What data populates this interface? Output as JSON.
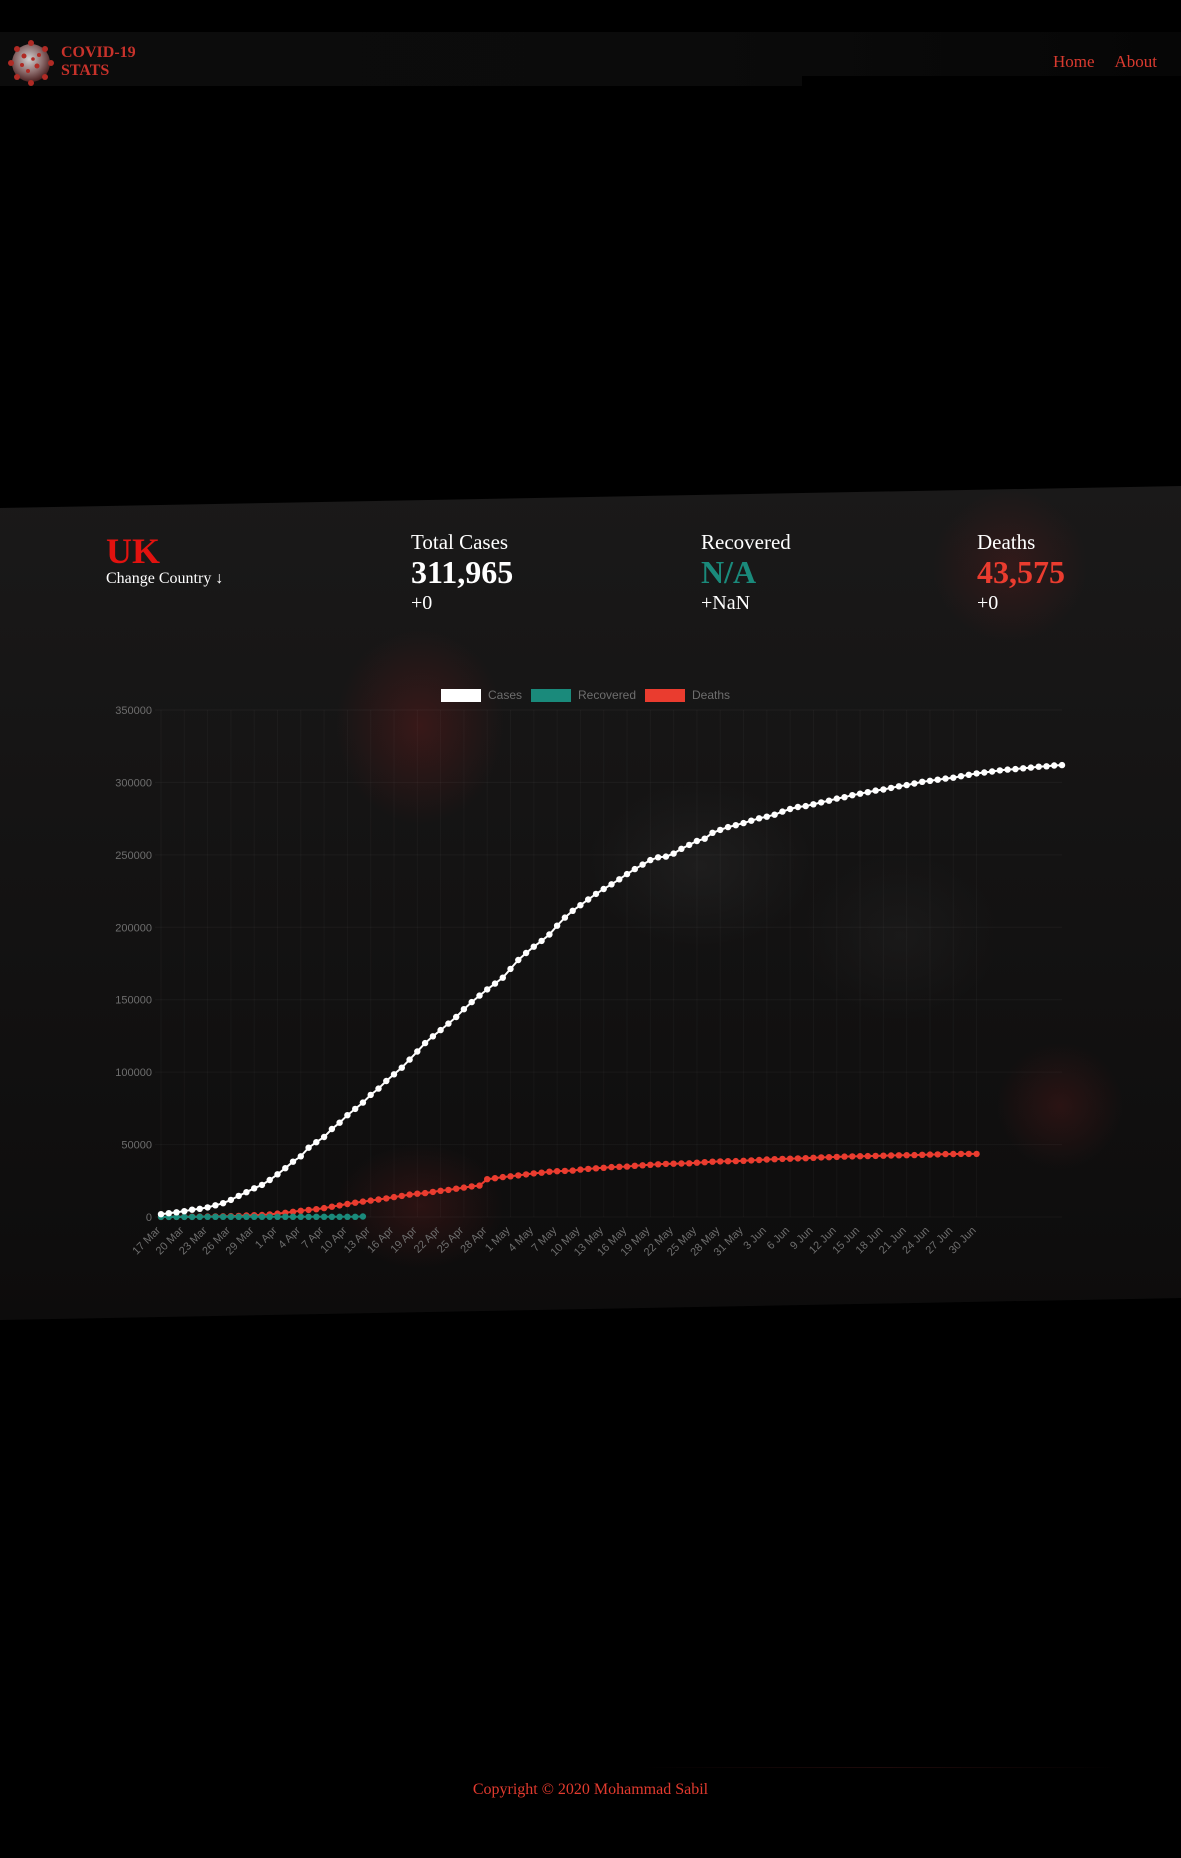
{
  "header": {
    "brand_line1": "COVID-19",
    "brand_line2": "STATS",
    "nav": [
      {
        "label": "Home"
      },
      {
        "label": "About"
      }
    ]
  },
  "country": {
    "code": "UK",
    "change_label": "Change Country ↓"
  },
  "stats": {
    "cases": {
      "label": "Total Cases",
      "value": "311,965",
      "delta": "+0"
    },
    "recovered": {
      "label": "Recovered",
      "value": "N/A",
      "delta": "+NaN"
    },
    "deaths": {
      "label": "Deaths",
      "value": "43,575",
      "delta": "+0"
    }
  },
  "colors": {
    "cases": "#ffffff",
    "recovered": "#1a8a7b",
    "deaths": "#ea3c2f",
    "country": "#e2120f"
  },
  "chart_data": {
    "type": "line",
    "legend": [
      "Cases",
      "Recovered",
      "Deaths"
    ],
    "legend_position": "top",
    "ylim": [
      0,
      350000
    ],
    "yticks": [
      0,
      50000,
      100000,
      150000,
      200000,
      250000,
      300000,
      350000
    ],
    "xtick_labels": [
      "17 Mar",
      "20 Mar",
      "23 Mar",
      "26 Mar",
      "29 Mar",
      "1 Apr",
      "4 Apr",
      "7 Apr",
      "10 Apr",
      "13 Apr",
      "16 Apr",
      "19 Apr",
      "22 Apr",
      "25 Apr",
      "28 Apr",
      "1 May",
      "4 May",
      "7 May",
      "10 May",
      "13 May",
      "16 May",
      "19 May",
      "22 May",
      "25 May",
      "28 May",
      "31 May",
      "3 Jun",
      "6 Jun",
      "9 Jun",
      "12 Jun",
      "15 Jun",
      "18 Jun",
      "21 Jun",
      "24 Jun",
      "27 Jun",
      "30 Jun"
    ],
    "series": [
      {
        "name": "Cases",
        "x_start": "17 Mar",
        "values": [
          1950,
          2630,
          3270,
          3980,
          5020,
          5680,
          6650,
          8080,
          9530,
          11810,
          14540,
          17090,
          19780,
          22190,
          25520,
          29480,
          33720,
          38170,
          41900,
          47810,
          51610,
          55240,
          60730,
          65080,
          70270,
          74610,
          79000,
          84280,
          88620,
          93870,
          98480,
          103090,
          108690,
          114220,
          120070,
          124740,
          129040,
          133500,
          138080,
          143460,
          148380,
          152840,
          157150,
          161150,
          165220,
          171250,
          177450,
          182260,
          186600,
          190580,
          194990,
          201100,
          206710,
          211360,
          215260,
          219180,
          223060,
          226460,
          229700,
          233150,
          236710,
          240160,
          243300,
          246400,
          248290,
          248810,
          250900,
          254200,
          256890,
          259560,
          261180,
          265230,
          267240,
          269130,
          270450,
          271940,
          273560,
          275230,
          276330,
          277690,
          279860,
          281660,
          283060,
          283650,
          284900,
          286200,
          287400,
          288840,
          289790,
          291160,
          292250,
          293240,
          294380,
          295150,
          296220,
          297360,
          298140,
          299250,
          300460,
          301120,
          301850,
          302630,
          303290,
          304330,
          305290,
          306210,
          306860,
          307540,
          308270,
          308840,
          309220,
          309760,
          310250,
          310840,
          311150,
          311720,
          311965
        ],
        "color": "#ffffff"
      },
      {
        "name": "Recovered",
        "x_start": "17 Mar",
        "values": [
          52,
          65,
          65,
          65,
          65,
          135,
          135,
          135,
          135,
          135,
          135,
          135,
          135,
          135,
          135,
          135,
          135,
          135,
          135,
          135,
          135,
          135,
          135,
          135,
          135,
          135,
          344
        ],
        "color": "#1a8a7b"
      },
      {
        "name": "Deaths",
        "x_start": "17 Mar",
        "values": [
          71,
          104,
          144,
          177,
          233,
          281,
          335,
          422,
          465,
          578,
          759,
          1019,
          1228,
          1408,
          1789,
          2352,
          2921,
          3605,
          4313,
          4934,
          5373,
          6159,
          7097,
          7978,
          8958,
          9875,
          10612,
          11329,
          12107,
          12868,
          13729,
          14576,
          15464,
          16060,
          16509,
          17337,
          18100,
          18738,
          19506,
          20319,
          21092,
          21678,
          26097,
          26771,
          27510,
          28131,
          28734,
          29427,
          30076,
          30615,
          31241,
          31587,
          31855,
          32065,
          32692,
          33186,
          33614,
          33998,
          34466,
          34636,
          34796,
          35341,
          35704,
          36042,
          36393,
          36675,
          36793,
          36914,
          37048,
          37460,
          37837,
          38161,
          38376,
          38489,
          38589,
          38818,
          39045,
          39369,
          39728,
          39904,
          40097,
          40261,
          40465,
          40597,
          40883,
          41128,
          41279,
          41481,
          41662,
          41821,
          41969,
          42054,
          42153,
          42288,
          42461,
          42589,
          42647,
          42731,
          42927,
          43081,
          43230,
          43414,
          43514,
          43550,
          43575,
          43575
        ],
        "color": "#ea3c2f"
      }
    ]
  },
  "footer": {
    "copyright": "Copyright © 2020 Mohammad Sabil"
  }
}
